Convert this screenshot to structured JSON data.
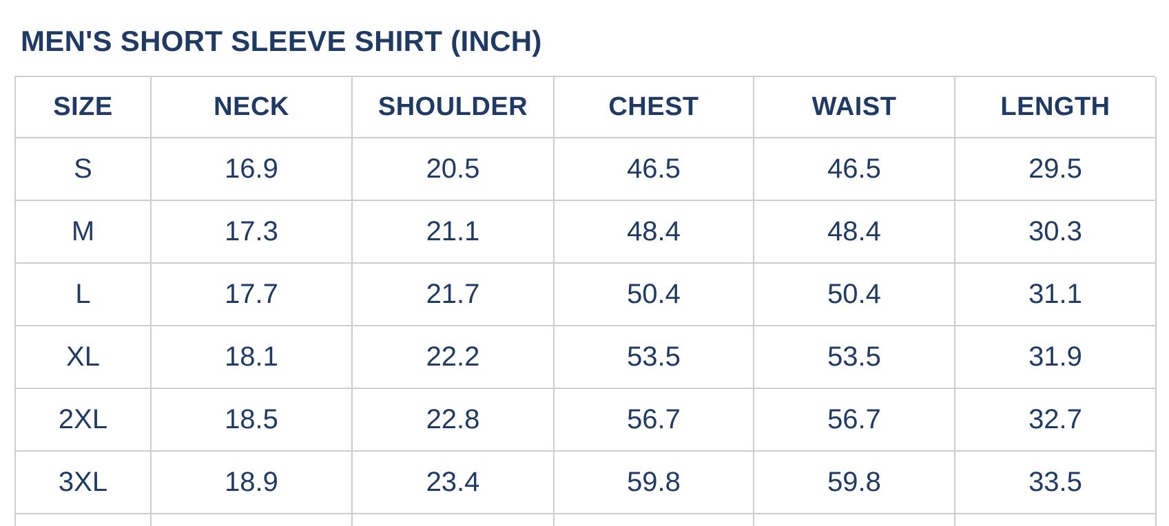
{
  "page": {
    "title": "MEN'S SHORT SLEEVE SHIRT (INCH)"
  },
  "colors": {
    "text_navy": "#1f3a63",
    "border_gray": "#cdcdcd",
    "background": "#ffffff"
  },
  "table": {
    "columns": [
      "SIZE",
      "NECK",
      "SHOULDER",
      "CHEST",
      "WAIST",
      "LENGTH"
    ],
    "rows": [
      {
        "cells": [
          "S",
          "16.9",
          "20.5",
          "46.5",
          "46.5",
          "29.5"
        ]
      },
      {
        "cells": [
          "M",
          "17.3",
          "21.1",
          "48.4",
          "48.4",
          "30.3"
        ]
      },
      {
        "cells": [
          "L",
          "17.7",
          "21.7",
          "50.4",
          "50.4",
          "31.1"
        ]
      },
      {
        "cells": [
          "XL",
          "18.1",
          "22.2",
          "53.5",
          "53.5",
          "31.9"
        ]
      },
      {
        "cells": [
          "2XL",
          "18.5",
          "22.8",
          "56.7",
          "56.7",
          "32.7"
        ]
      },
      {
        "cells": [
          "3XL",
          "18.9",
          "23.4",
          "59.8",
          "59.8",
          "33.5"
        ]
      }
    ]
  },
  "chart_data": {
    "type": "table",
    "title": "MEN'S SHORT SLEEVE SHIRT (INCH)",
    "units": "inch",
    "columns": [
      "SIZE",
      "NECK",
      "SHOULDER",
      "CHEST",
      "WAIST",
      "LENGTH"
    ],
    "rows": [
      [
        "S",
        16.9,
        20.5,
        46.5,
        46.5,
        29.5
      ],
      [
        "M",
        17.3,
        21.1,
        48.4,
        48.4,
        30.3
      ],
      [
        "L",
        17.7,
        21.7,
        50.4,
        50.4,
        31.1
      ],
      [
        "XL",
        18.1,
        22.2,
        53.5,
        53.5,
        31.9
      ],
      [
        "2XL",
        18.5,
        22.8,
        56.7,
        56.7,
        32.7
      ],
      [
        "3XL",
        18.9,
        23.4,
        59.8,
        59.8,
        33.5
      ]
    ]
  }
}
